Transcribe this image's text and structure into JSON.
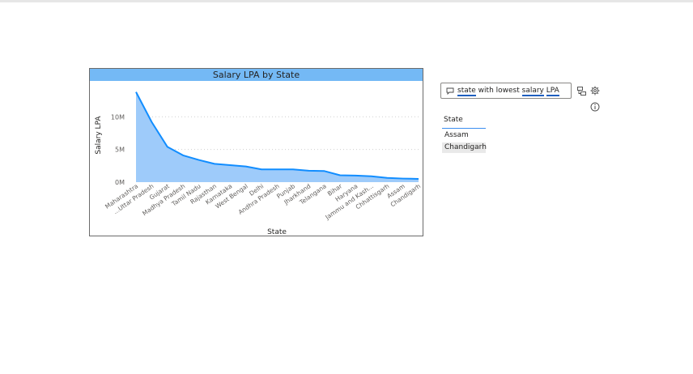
{
  "qa": {
    "tokens": [
      {
        "text": "state",
        "hl": true
      },
      {
        "text": " with lowest ",
        "hl": false
      },
      {
        "text": "salary",
        "hl": true
      },
      {
        "text": " ",
        "hl": false
      },
      {
        "text": "LPA",
        "hl": true
      }
    ],
    "icons": [
      "chat-icon",
      "convert-to-visual-icon",
      "settings-gear-icon",
      "info-icon"
    ]
  },
  "result": {
    "header": "State",
    "rows": [
      "Assam",
      "Chandigarh"
    ],
    "selected_index": 1
  },
  "chart_data": {
    "type": "area",
    "title": "Salary LPA by State",
    "xlabel": "State",
    "ylabel": "Salary LPA",
    "categories": [
      "Maharashtra",
      "Uttar Pradesh",
      "Gujarat",
      "Madhya Pradesh",
      "Tamil Nadu",
      "Rajasthan",
      "Karnataka",
      "West Bengal",
      "Delhi",
      "Andhra Pradesh",
      "Punjab",
      "Jharkhand",
      "Telangana",
      "Bihar",
      "Haryana",
      "Jammu and Kash...",
      "Chhattisgarh",
      "Assam",
      "Chandigarh"
    ],
    "tick_labels": [
      "Maharashtra",
      "...Uttar Pradesh",
      "Gujarat",
      "Madhya Pradesh",
      "Tamil Nadu",
      "Rajasthan",
      "Karnataka",
      "West Bengal",
      "Delhi",
      "Andhra Pradesh",
      "Punjab",
      "Jharkhand",
      "Telangana",
      "Bihar",
      "Haryana",
      "Jammu and Kash...",
      "Chhattisgarh",
      "Assam",
      "Chandigarh"
    ],
    "values": [
      13800000,
      9200000,
      5400000,
      4100000,
      3400000,
      2800000,
      2600000,
      2400000,
      1950000,
      1950000,
      1950000,
      1750000,
      1700000,
      1050000,
      1000000,
      900000,
      650000,
      550000,
      500000
    ],
    "y_ticks": [
      0,
      5000000,
      10000000
    ],
    "y_tick_labels": [
      "0M",
      "5M",
      "10M"
    ],
    "ylim": [
      0,
      14500000
    ],
    "grid": true,
    "colors": {
      "line": "#118dff",
      "fill": "#9ecbfa",
      "header": "#74b9f5"
    }
  }
}
